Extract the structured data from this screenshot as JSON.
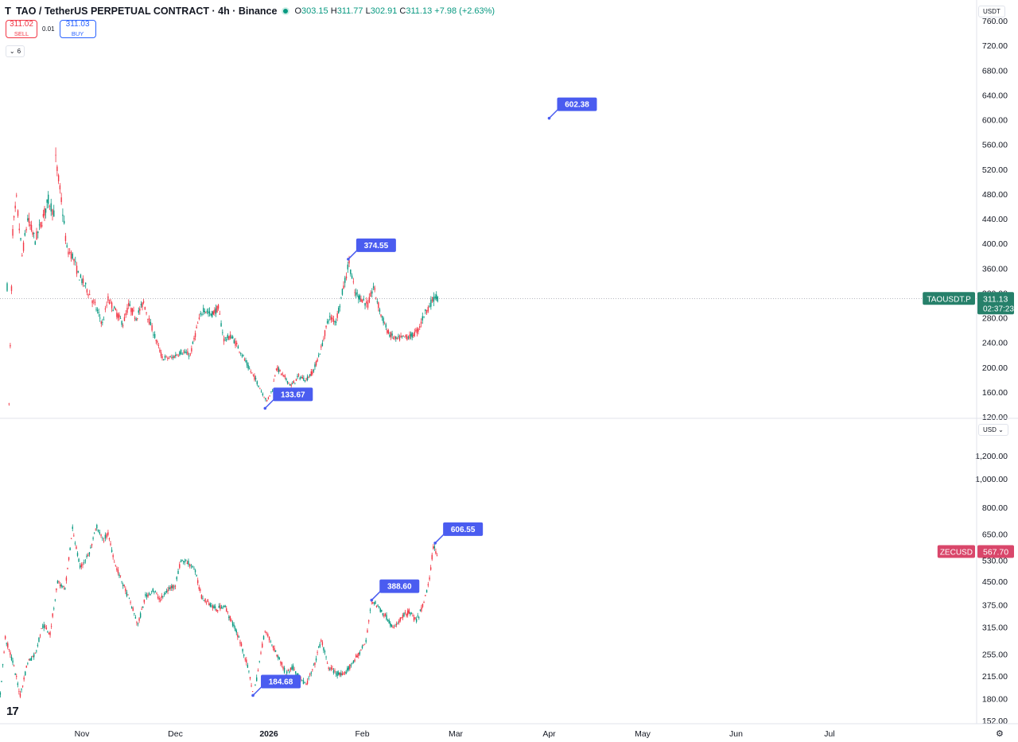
{
  "header": {
    "symbol": "TAO / TetherUS PERPETUAL CONTRACT · 4h · Binance",
    "open_label": "O",
    "open": "303.15",
    "high_label": "H",
    "high": "311.77",
    "low_label": "L",
    "low": "302.91",
    "close_label": "C",
    "close": "311.13",
    "change": "+7.98 (+2.63%)",
    "logo": "T"
  },
  "trade": {
    "sell_price": "311.02",
    "sell_label": "SELL",
    "spread": "0.01",
    "buy_price": "311.03",
    "buy_label": "BUY"
  },
  "collapse": {
    "count": "6"
  },
  "units": {
    "top": "USDT",
    "bottom": "USD"
  },
  "colors": {
    "up": "#089981",
    "down": "#f23645",
    "label_bg": "#4a5cf0",
    "tao_tag": "#26806a",
    "zec_tag": "#d9466a"
  },
  "icons": {
    "collapse": "chevron-down-icon",
    "status": "market-open-dot-icon",
    "settings": "gear-icon",
    "brand": "tradingview-logo-icon"
  },
  "tv_logo": "17",
  "time_axis": {
    "labels": [
      {
        "text": "Nov",
        "bold": false
      },
      {
        "text": "Dec",
        "bold": false
      },
      {
        "text": "2026",
        "bold": true
      },
      {
        "text": "Feb",
        "bold": false
      },
      {
        "text": "Mar",
        "bold": false
      },
      {
        "text": "Apr",
        "bold": false
      },
      {
        "text": "May",
        "bold": false
      },
      {
        "text": "Jun",
        "bold": false
      },
      {
        "text": "Jul",
        "bold": false
      }
    ]
  },
  "chart_data": [
    {
      "type": "candlestick",
      "symbol": "TAOUSDT.P",
      "interval": "4h",
      "scale": "linear",
      "ylim": [
        120,
        760
      ],
      "yticks": [
        "760.00",
        "720.00",
        "680.00",
        "640.00",
        "600.00",
        "560.00",
        "520.00",
        "480.00",
        "440.00",
        "400.00",
        "360.00",
        "320.00",
        "280.00",
        "240.00",
        "200.00",
        "160.00",
        "120.00"
      ],
      "last_price": 311.13,
      "last_price_label": "311.13",
      "countdown": "02:37:23",
      "tag": "TAOUSDT.P",
      "x_months": [
        -1.0,
        0,
        1,
        2,
        3,
        4,
        5,
        6,
        7,
        8,
        8.6
      ],
      "path": [
        [
          -0.8,
          330
        ],
        [
          -0.78,
          140
        ],
        [
          -0.74,
          420
        ],
        [
          -0.7,
          470
        ],
        [
          -0.64,
          380
        ],
        [
          -0.58,
          440
        ],
        [
          -0.5,
          405
        ],
        [
          -0.44,
          430
        ],
        [
          -0.36,
          470
        ],
        [
          -0.3,
          450
        ],
        [
          -0.28,
          535
        ],
        [
          -0.22,
          470
        ],
        [
          -0.16,
          390
        ],
        [
          -0.1,
          380
        ],
        [
          -0.04,
          350
        ],
        [
          0.04,
          330
        ],
        [
          0.14,
          300
        ],
        [
          0.22,
          270
        ],
        [
          0.28,
          310
        ],
        [
          0.36,
          290
        ],
        [
          0.44,
          270
        ],
        [
          0.5,
          300
        ],
        [
          0.58,
          280
        ],
        [
          0.66,
          305
        ],
        [
          0.72,
          275
        ],
        [
          0.78,
          250
        ],
        [
          0.86,
          215
        ],
        [
          0.96,
          215
        ],
        [
          1.06,
          225
        ],
        [
          1.16,
          220
        ],
        [
          1.24,
          270
        ],
        [
          1.3,
          295
        ],
        [
          1.38,
          285
        ],
        [
          1.46,
          295
        ],
        [
          1.52,
          245
        ],
        [
          1.6,
          250
        ],
        [
          1.7,
          225
        ],
        [
          1.78,
          200
        ],
        [
          1.86,
          180
        ],
        [
          1.92,
          162
        ],
        [
          1.98,
          145
        ],
        [
          2.04,
          165
        ],
        [
          2.08,
          200
        ],
        [
          2.16,
          185
        ],
        [
          2.24,
          170
        ],
        [
          2.32,
          185
        ],
        [
          2.4,
          180
        ],
        [
          2.48,
          195
        ],
        [
          2.56,
          230
        ],
        [
          2.64,
          280
        ],
        [
          2.72,
          275
        ],
        [
          2.8,
          330
        ],
        [
          2.86,
          370
        ],
        [
          2.92,
          320
        ],
        [
          3.0,
          310
        ],
        [
          3.06,
          300
        ],
        [
          3.12,
          330
        ],
        [
          3.2,
          285
        ],
        [
          3.28,
          255
        ],
        [
          3.36,
          245
        ],
        [
          3.44,
          248
        ],
        [
          3.52,
          250
        ],
        [
          3.6,
          260
        ],
        [
          3.66,
          285
        ],
        [
          3.72,
          300
        ],
        [
          3.78,
          315
        ],
        [
          3.82,
          311
        ]
      ],
      "annotations": [
        {
          "label": "374.55",
          "month": 2.85,
          "value": 374.55
        },
        {
          "label": "133.67",
          "month": 1.96,
          "value": 133.67
        },
        {
          "label": "602.38",
          "month": 5.0,
          "value": 602.38
        }
      ]
    },
    {
      "type": "candlestick",
      "symbol": "ZECUSD",
      "interval": "4h",
      "scale": "log",
      "ylim": [
        150,
        1400
      ],
      "yticks": [
        "1,200.00",
        "1,000.00",
        "800.00",
        "650.00",
        "530.00",
        "450.00",
        "375.00",
        "315.00",
        "255.00",
        "215.00",
        "180.00",
        "152.00"
      ],
      "ytick_values": [
        1200,
        1000,
        800,
        650,
        530,
        450,
        375,
        315,
        255,
        215,
        180,
        152
      ],
      "last_price": 567.7,
      "last_price_label": "567.70",
      "tag": "ZECUSD",
      "path": [
        [
          -0.9,
          150
        ],
        [
          -0.82,
          290
        ],
        [
          -0.74,
          240
        ],
        [
          -0.66,
          185
        ],
        [
          -0.58,
          240
        ],
        [
          -0.5,
          255
        ],
        [
          -0.42,
          320
        ],
        [
          -0.34,
          300
        ],
        [
          -0.26,
          450
        ],
        [
          -0.18,
          420
        ],
        [
          -0.1,
          680
        ],
        [
          -0.02,
          500
        ],
        [
          0.08,
          560
        ],
        [
          0.16,
          690
        ],
        [
          0.22,
          620
        ],
        [
          0.28,
          650
        ],
        [
          0.36,
          510
        ],
        [
          0.44,
          440
        ],
        [
          0.52,
          380
        ],
        [
          0.6,
          320
        ],
        [
          0.68,
          400
        ],
        [
          0.76,
          420
        ],
        [
          0.84,
          390
        ],
        [
          0.92,
          420
        ],
        [
          1.0,
          440
        ],
        [
          1.06,
          530
        ],
        [
          1.14,
          520
        ],
        [
          1.2,
          500
        ],
        [
          1.28,
          400
        ],
        [
          1.36,
          380
        ],
        [
          1.44,
          360
        ],
        [
          1.52,
          375
        ],
        [
          1.6,
          330
        ],
        [
          1.68,
          290
        ],
        [
          1.76,
          240
        ],
        [
          1.84,
          185
        ],
        [
          1.9,
          240
        ],
        [
          1.96,
          310
        ],
        [
          2.02,
          280
        ],
        [
          2.1,
          250
        ],
        [
          2.18,
          220
        ],
        [
          2.26,
          230
        ],
        [
          2.34,
          210
        ],
        [
          2.4,
          200
        ],
        [
          2.48,
          230
        ],
        [
          2.56,
          285
        ],
        [
          2.64,
          230
        ],
        [
          2.72,
          220
        ],
        [
          2.8,
          215
        ],
        [
          2.88,
          235
        ],
        [
          2.96,
          255
        ],
        [
          3.04,
          280
        ],
        [
          3.1,
          390
        ],
        [
          3.18,
          365
        ],
        [
          3.26,
          340
        ],
        [
          3.34,
          310
        ],
        [
          3.42,
          340
        ],
        [
          3.5,
          355
        ],
        [
          3.58,
          330
        ],
        [
          3.66,
          380
        ],
        [
          3.72,
          460
        ],
        [
          3.76,
          590
        ],
        [
          3.8,
          560
        ],
        [
          3.82,
          568
        ]
      ],
      "annotations": [
        {
          "label": "606.55",
          "month": 3.78,
          "value": 606.55
        },
        {
          "label": "388.60",
          "month": 3.1,
          "value": 388.6
        },
        {
          "label": "184.68",
          "month": 1.83,
          "value": 184.68
        }
      ]
    }
  ]
}
